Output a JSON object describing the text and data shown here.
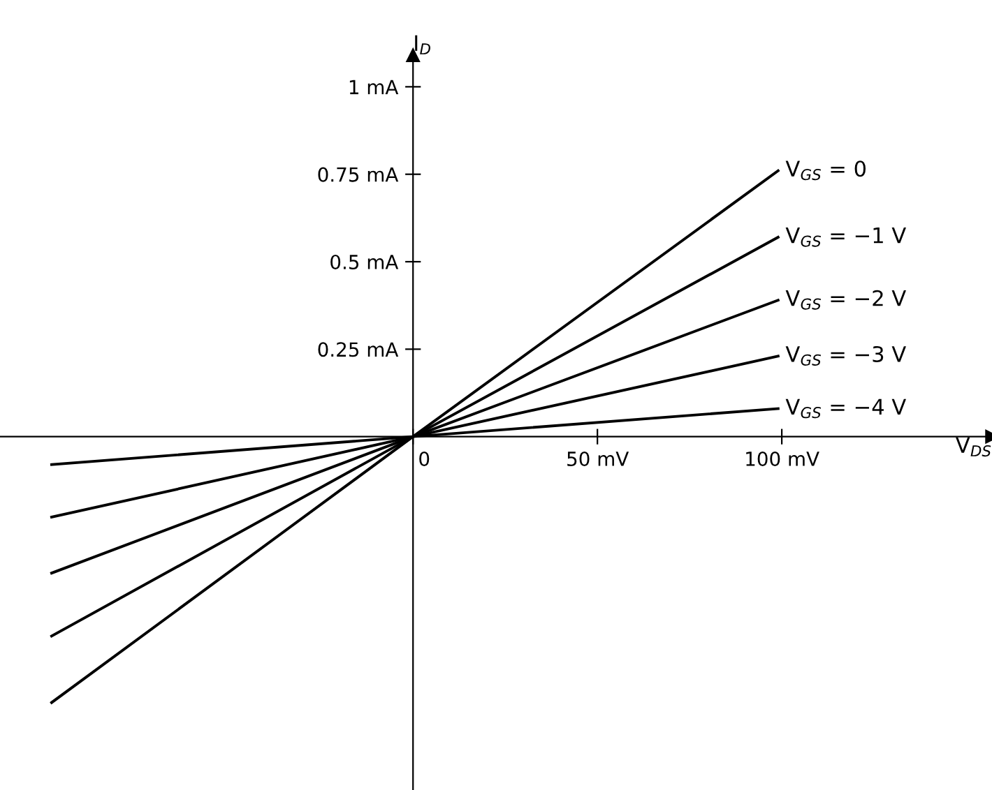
{
  "chart_data": {
    "type": "line",
    "xlabel": "V$_{DS}$",
    "ylabel": "I$_{D}$",
    "xlim": [
      -112,
      157
    ],
    "ylim": [
      -1.01,
      1.09
    ],
    "xticks": [
      {
        "value": 0,
        "label": "0"
      },
      {
        "value": 50,
        "label": "50 mV"
      },
      {
        "value": 100,
        "label": "100 mV"
      }
    ],
    "yticks": [
      {
        "value": 0.25,
        "label": "0.25 mA"
      },
      {
        "value": 0.5,
        "label": "0.5 mA"
      },
      {
        "value": 0.75,
        "label": "0.75 mA"
      },
      {
        "value": 1,
        "label": "1 mA"
      }
    ],
    "grid": false,
    "legend": false,
    "marker": "none",
    "line_style": "solid",
    "series": [
      {
        "name": "V$_{GS}$ = 0",
        "color": "#000000",
        "x": [
          -98,
          0,
          99
        ],
        "values": [
          -0.76,
          0,
          0.76
        ]
      },
      {
        "name": "V$_{GS}$ = −1 V",
        "color": "#000000",
        "x": [
          -98,
          0,
          99
        ],
        "values": [
          -0.57,
          0,
          0.57
        ]
      },
      {
        "name": "V$_{GS}$ = −2 V",
        "color": "#000000",
        "x": [
          -98,
          0,
          99
        ],
        "values": [
          -0.39,
          0,
          0.39
        ]
      },
      {
        "name": "V$_{GS}$ = −3 V",
        "color": "#000000",
        "x": [
          -98,
          0,
          99
        ],
        "values": [
          -0.23,
          0,
          0.23
        ]
      },
      {
        "name": "V$_{GS}$ = −4 V",
        "color": "#000000",
        "x": [
          -98,
          0,
          99
        ],
        "values": [
          -0.08,
          0,
          0.08
        ]
      }
    ]
  }
}
